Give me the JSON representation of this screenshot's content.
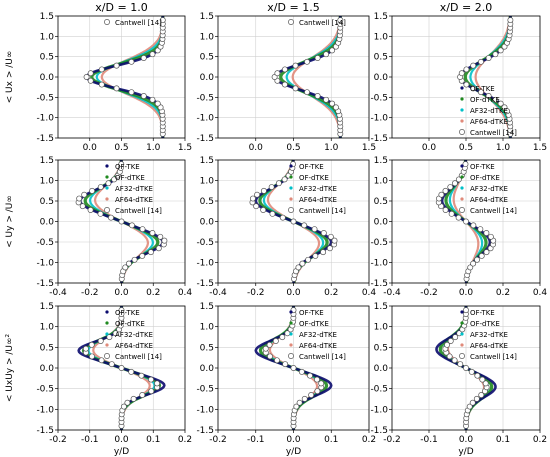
{
  "column_titles": [
    "x/D = 1.0",
    "x/D = 1.5",
    "x/D = 2.0"
  ],
  "row_ylabels": [
    "< Ux > /U∞",
    "< Uy > /U∞",
    "< UxUy > /U∞²"
  ],
  "xlabel": "y/D",
  "colors": {
    "OF-TKE": "#0b0b6e",
    "OF-dTKE": "#1f8a1f",
    "AF32-dTKE": "#00c0c8",
    "AF64-dTKE": "#e08a7a",
    "Cantwell [14]": "#555555"
  },
  "chart_data": [
    {
      "type": "line",
      "panel": "r0c0",
      "title": "x/D = 1.0",
      "xlabel": "",
      "ylabel": "< Ux > /U∞",
      "xlim": [
        -0.5,
        1.5
      ],
      "ylim": [
        -1.5,
        1.5
      ],
      "xticks": [
        "0.0",
        "0.5",
        "1.0",
        "1.5"
      ],
      "yticks": [
        "1.5",
        "1.0",
        "0.5",
        "0.0",
        "-0.5",
        "-1.0",
        "-1.5"
      ],
      "grid": true,
      "legend_placement": "top-right",
      "legend": [
        "Cantwell [14]"
      ],
      "model": {
        "kind": "dip",
        "base": 1.15,
        "min": -0.05,
        "width": 0.28,
        "spread": 0.08
      },
      "cantwell_scale": 1.0
    },
    {
      "type": "line",
      "panel": "r0c1",
      "title": "x/D = 1.5",
      "xlabel": "",
      "ylabel": "",
      "xlim": [
        -0.5,
        1.5
      ],
      "ylim": [
        -1.5,
        1.5
      ],
      "xticks": [
        "0.0",
        "0.5",
        "1.0",
        "1.5"
      ],
      "yticks": [],
      "grid": true,
      "legend_placement": "top-right",
      "legend": [
        "Cantwell [14]"
      ],
      "model": {
        "kind": "dip",
        "base": 1.12,
        "min": 0.25,
        "width": 0.32,
        "spread": 0.08
      },
      "cantwell_scale": 1.0
    },
    {
      "type": "line",
      "panel": "r0c2",
      "title": "x/D = 2.0",
      "xlabel": "",
      "ylabel": "",
      "xlim": [
        -0.5,
        1.5
      ],
      "ylim": [
        -1.5,
        1.5
      ],
      "xticks": [
        "0.0",
        "0.5",
        "1.0",
        "1.5"
      ],
      "yticks": [],
      "grid": true,
      "legend_placement": "center-right",
      "legend": [
        "OF-TKE",
        "OF-dTKE",
        "AF32-dTKE",
        "AF64-dTKE",
        "Cantwell [14]"
      ],
      "model": {
        "kind": "dip",
        "base": 1.1,
        "min": 0.42,
        "width": 0.36,
        "spread": 0.07
      },
      "cantwell_scale": 1.0
    },
    {
      "type": "line",
      "panel": "r1c0",
      "title": "",
      "xlabel": "",
      "ylabel": "< Uy > /U∞",
      "xlim": [
        -0.4,
        0.4
      ],
      "ylim": [
        -1.5,
        1.5
      ],
      "xticks": [
        "-0.4",
        "-0.2",
        "0.0",
        "0.2",
        "0.4"
      ],
      "yticks": [
        "1.5",
        "1.0",
        "0.5",
        "0.0",
        "-0.5",
        "-1.0",
        "-1.5"
      ],
      "grid": true,
      "legend_placement": "top-right",
      "legend": [
        "OF-TKE",
        "OF-dTKE",
        "AF32-dTKE",
        "AF64-dTKE",
        "Cantwell [14]"
      ],
      "model": {
        "kind": "anti",
        "amp": 0.26,
        "center": 0.5,
        "width": 0.28,
        "spread": 0.03
      },
      "cantwell_scale": 1.05
    },
    {
      "type": "line",
      "panel": "r1c1",
      "title": "",
      "xlabel": "",
      "ylabel": "",
      "xlim": [
        -0.4,
        0.4
      ],
      "ylim": [
        -1.5,
        1.5
      ],
      "xticks": [
        "-0.4",
        "-0.2",
        "0.0",
        "0.2",
        "0.4"
      ],
      "yticks": [],
      "grid": true,
      "legend_placement": "top-right",
      "legend": [
        "OF-TKE",
        "OF-dTKE",
        "AF32-dTKE",
        "AF64-dTKE",
        "Cantwell [14]"
      ],
      "model": {
        "kind": "anti",
        "amp": 0.2,
        "center": 0.5,
        "width": 0.3,
        "spread": 0.02
      },
      "cantwell_scale": 1.1
    },
    {
      "type": "line",
      "panel": "r1c2",
      "title": "",
      "xlabel": "",
      "ylabel": "",
      "xlim": [
        -0.4,
        0.4
      ],
      "ylim": [
        -1.5,
        1.5
      ],
      "xticks": [
        "-0.4",
        "-0.2",
        "0.0",
        "0.2",
        "0.4"
      ],
      "yticks": [],
      "grid": true,
      "legend_placement": "top-right",
      "legend": [
        "OF-TKE",
        "OF-dTKE",
        "AF32-dTKE",
        "AF64-dTKE",
        "Cantwell [14]"
      ],
      "model": {
        "kind": "anti",
        "amp": 0.13,
        "center": 0.5,
        "width": 0.32,
        "spread": 0.02
      },
      "cantwell_scale": 1.15
    },
    {
      "type": "line",
      "panel": "r2c0",
      "title": "",
      "xlabel": "y/D",
      "ylabel": "< UxUy > /U∞²",
      "xlim": [
        -0.2,
        0.2
      ],
      "ylim": [
        -1.5,
        1.5
      ],
      "xticks": [
        "-0.2",
        "-0.1",
        "0.0",
        "0.1",
        "0.2"
      ],
      "yticks": [
        "1.5",
        "1.0",
        "0.5",
        "0.0",
        "-0.5",
        "-1.0",
        "-1.5"
      ],
      "grid": true,
      "legend_placement": "top-right",
      "legend": [
        "OF-TKE",
        "OF-dTKE",
        "AF32-dTKE",
        "AF64-dTKE",
        "Cantwell [14]"
      ],
      "model": {
        "kind": "anti",
        "amp": 0.135,
        "center": 0.42,
        "width": 0.22,
        "spread": 0.015
      },
      "cantwell_scale": 0.85
    },
    {
      "type": "line",
      "panel": "r2c1",
      "title": "",
      "xlabel": "y/D",
      "ylabel": "",
      "xlim": [
        -0.2,
        0.2
      ],
      "ylim": [
        -1.5,
        1.5
      ],
      "xticks": [
        "-0.2",
        "-0.1",
        "0.0",
        "0.1",
        "0.2"
      ],
      "yticks": [],
      "grid": true,
      "legend_placement": "top-right",
      "legend": [
        "OF-TKE",
        "OF-dTKE",
        "AF32-dTKE",
        "AF64-dTKE",
        "Cantwell [14]"
      ],
      "model": {
        "kind": "anti",
        "amp": 0.1,
        "center": 0.42,
        "width": 0.24,
        "spread": 0.012
      },
      "cantwell_scale": 0.75
    },
    {
      "type": "line",
      "panel": "r2c2",
      "title": "",
      "xlabel": "y/D",
      "ylabel": "",
      "xlim": [
        -0.2,
        0.2
      ],
      "ylim": [
        -1.5,
        1.5
      ],
      "xticks": [
        "-0.2",
        "-0.1",
        "0.0",
        "0.1",
        "0.2"
      ],
      "yticks": [],
      "grid": true,
      "legend_placement": "top-right",
      "legend": [
        "OF-TKE",
        "OF-dTKE",
        "AF32-dTKE",
        "AF64-dTKE",
        "Cantwell [14]"
      ],
      "model": {
        "kind": "anti",
        "amp": 0.08,
        "center": 0.45,
        "width": 0.26,
        "spread": 0.01
      },
      "cantwell_scale": 0.7
    }
  ]
}
